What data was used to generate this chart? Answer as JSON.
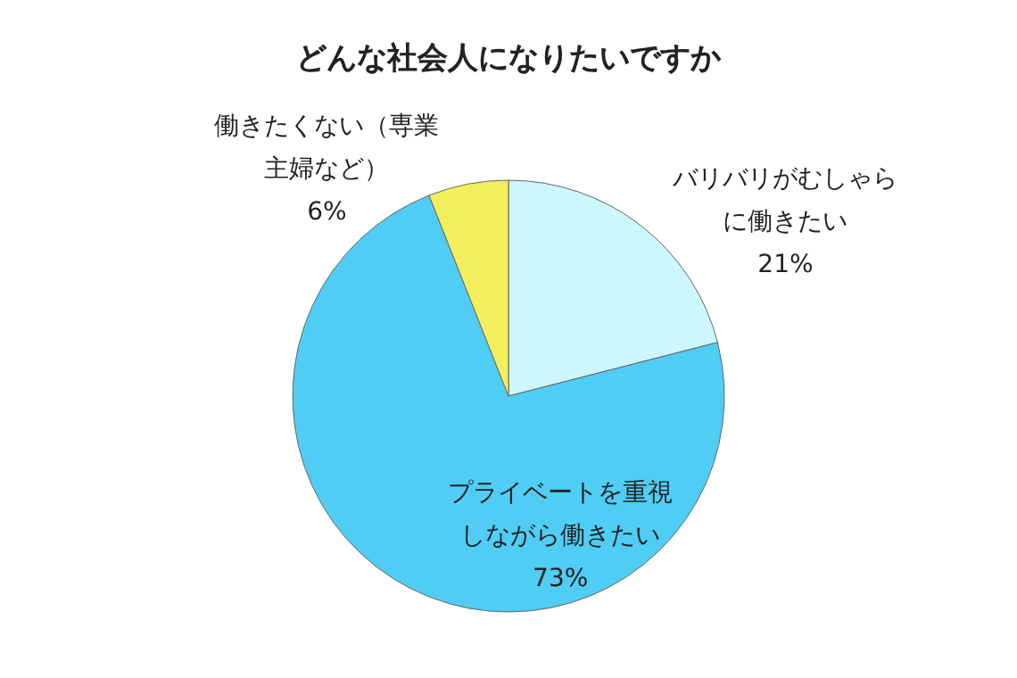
{
  "chart_data": {
    "type": "pie",
    "title": "どんな社会人になりたいですか",
    "categories": [
      "バリバリがむしゃらに働きたい",
      "プライベートを重視しながら働きたい",
      "働きたくない（専業主婦など）"
    ],
    "values": [
      21,
      73,
      6
    ],
    "value_labels": [
      "21%",
      "73%",
      "6%"
    ],
    "colors": [
      "#ccf7fc",
      "#4fcdf5",
      "#f3ee5c"
    ]
  }
}
